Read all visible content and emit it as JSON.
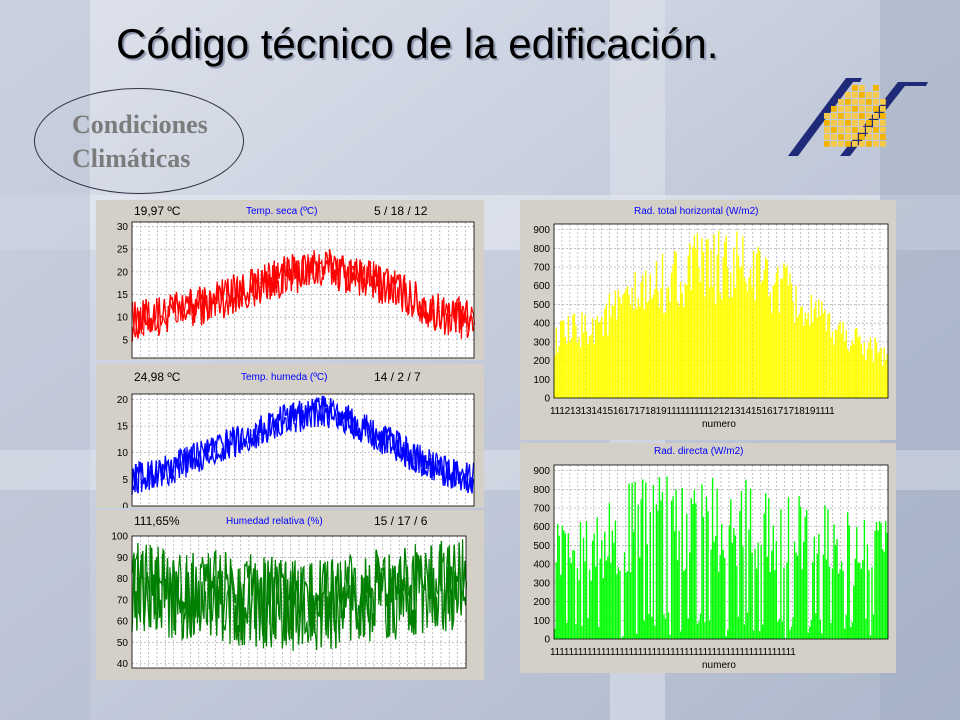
{
  "slide": {
    "title": "Código técnico de la edificación.",
    "callout_line1": "Condiciones",
    "callout_line2": "Climáticas",
    "logo_icon": "building-grid-logo-icon",
    "background_color": "#c9d0de"
  },
  "charts": {
    "temp_seca": {
      "reading": "19,97 ºC",
      "date": "5  / 18 / 12"
    },
    "temp_humeda": {
      "reading": "24,98 ºC",
      "date": "14 / 2  / 7"
    },
    "humedad": {
      "reading": "111,65%",
      "date": "15 / 17 / 6"
    },
    "rad_total_xticks": "1112131314151617171819111111111121213141516171718191111",
    "rad_directa_xticks": "11111111111111111111111111111111111111111111111111111"
  },
  "chart_data": [
    {
      "id": "temp_seca",
      "type": "line",
      "title": "Temp. seca (ºC)",
      "color": "#ff0000",
      "yticks": [
        5,
        10,
        15,
        20,
        25,
        30
      ],
      "ylim": [
        1,
        31
      ],
      "profile": [
        9,
        11,
        13,
        16,
        19,
        21,
        19,
        16,
        11,
        9
      ],
      "band": 4.5,
      "grid": true
    },
    {
      "id": "temp_humeda",
      "type": "line",
      "title": "Temp. humeda (ºC)",
      "color": "#0000ff",
      "yticks": [
        0,
        5,
        10,
        15,
        20
      ],
      "ylim": [
        0,
        21
      ],
      "profile": [
        5,
        7,
        10,
        13,
        16,
        18,
        15,
        11,
        7,
        5
      ],
      "band": 3,
      "grid": true
    },
    {
      "id": "humedad",
      "type": "line",
      "title": "Humedad relativa (%)",
      "color": "#008000",
      "yticks": [
        40,
        50,
        60,
        70,
        80,
        90,
        100
      ],
      "ylim": [
        38,
        100
      ],
      "profile": [
        76,
        74,
        72,
        70,
        68,
        67,
        70,
        73,
        76,
        78
      ],
      "band": 22,
      "grid": true
    },
    {
      "id": "rad_total",
      "type": "bar",
      "title": "Rad. total horizontal (W/m2)",
      "color": "#ffff00",
      "xlabel": "numero",
      "yticks": [
        0,
        100,
        200,
        300,
        400,
        500,
        600,
        700,
        800,
        900
      ],
      "ylim": [
        0,
        930
      ],
      "profile": [
        400,
        500,
        650,
        800,
        900,
        900,
        780,
        550,
        420,
        300
      ],
      "grid": true
    },
    {
      "id": "rad_directa",
      "type": "bar",
      "title": "Rad. directa (W/m2)",
      "color": "#00ff00",
      "xlabel": "numero",
      "yticks": [
        0,
        100,
        200,
        300,
        400,
        500,
        600,
        700,
        800,
        900
      ],
      "ylim": [
        0,
        930
      ],
      "profile": [
        650,
        750,
        850,
        900,
        900,
        880,
        850,
        780,
        700,
        650
      ],
      "grid": true
    }
  ]
}
